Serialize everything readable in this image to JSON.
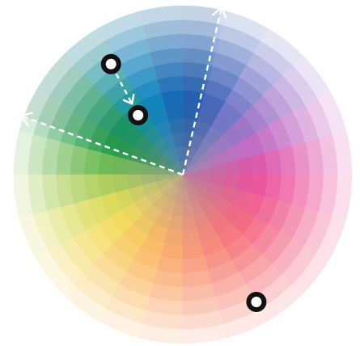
{
  "color_wheel": {
    "hue_count": 24,
    "ring_count": 12,
    "start_hue": 0,
    "hue_direction": "counter-clockwise",
    "colors": {
      "background": "#ffffff",
      "guide_line": "#ffffff",
      "handle_outer": "#111111",
      "handle_inner": "#ffffff"
    }
  },
  "selection": {
    "scheme": "complementary-split",
    "guide_arms": [
      {
        "name": "arm-left",
        "hue_angle": 160,
        "has_arrowhead": true
      },
      {
        "name": "arm-right",
        "hue_angle": 77,
        "has_arrowhead": true
      }
    ],
    "handles": [
      {
        "name": "handle-teal",
        "hue_angle": 123,
        "saturation_level": 0.78,
        "color": "#0f9aa8"
      },
      {
        "name": "handle-green",
        "hue_angle": 127,
        "saturation_level": 0.44,
        "color": "#1a8a3a"
      },
      {
        "name": "handle-pink-light",
        "hue_angle": 300,
        "saturation_level": 0.87,
        "color": "#f3dde6"
      }
    ],
    "connector": {
      "from": "handle-teal",
      "to": "handle-green",
      "style": "dashed-arrow"
    }
  }
}
